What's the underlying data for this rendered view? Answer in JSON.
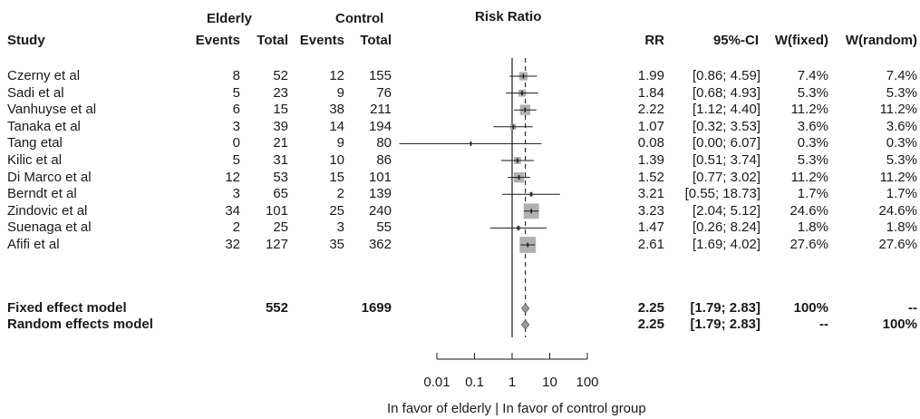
{
  "headers": {
    "study": "Study",
    "group1": "Elderly",
    "group2": "Control",
    "events": "Events",
    "total": "Total",
    "plot_title": "Risk Ratio",
    "rr": "RR",
    "ci": "95%-CI",
    "w_fixed": "W(fixed)",
    "w_random": "W(random)"
  },
  "footer": {
    "axis_caption": "In favor of elderly  |  In favor of control group"
  },
  "chart_data": {
    "type": "forest",
    "title": "Risk Ratio",
    "x_scale": "log",
    "x_ticks": [
      0.01,
      0.1,
      1,
      10,
      100
    ],
    "x_tick_labels": [
      "0.01",
      "0.1",
      "1",
      "10",
      "100"
    ],
    "xlim": [
      0.01,
      100
    ],
    "null_line": 1,
    "pooled_line": 2.25,
    "studies": [
      {
        "study": "Czerny et al",
        "e1": "8",
        "n1": "52",
        "e2": "12",
        "n2": "155",
        "rr": 1.99,
        "lo": 0.86,
        "hi": 4.59,
        "rr_label": "1.99",
        "ci_label": "[0.86;  4.59]",
        "wf": "7.4%",
        "wr": "7.4%",
        "weight": 7.4
      },
      {
        "study": "Sadi et al",
        "e1": "5",
        "n1": "23",
        "e2": "9",
        "n2": "76",
        "rr": 1.84,
        "lo": 0.68,
        "hi": 4.93,
        "rr_label": "1.84",
        "ci_label": "[0.68;  4.93]",
        "wf": "5.3%",
        "wr": "5.3%",
        "weight": 5.3
      },
      {
        "study": "Vanhuyse et al",
        "e1": "6",
        "n1": "15",
        "e2": "38",
        "n2": "211",
        "rr": 2.22,
        "lo": 1.12,
        "hi": 4.4,
        "rr_label": "2.22",
        "ci_label": "[1.12;  4.40]",
        "wf": "11.2%",
        "wr": "11.2%",
        "weight": 11.2
      },
      {
        "study": "Tanaka et al",
        "e1": "3",
        "n1": "39",
        "e2": "14",
        "n2": "194",
        "rr": 1.07,
        "lo": 0.32,
        "hi": 3.53,
        "rr_label": "1.07",
        "ci_label": "[0.32;  3.53]",
        "wf": "3.6%",
        "wr": "3.6%",
        "weight": 3.6
      },
      {
        "study": "Tang etal",
        "e1": "0",
        "n1": "21",
        "e2": "9",
        "n2": "80",
        "rr": 0.08,
        "lo": 0.001,
        "hi": 6.07,
        "rr_label": "0.08",
        "ci_label": "[0.00;  6.07]",
        "wf": "0.3%",
        "wr": "0.3%",
        "weight": 0.3
      },
      {
        "study": "Kilic et al",
        "e1": "5",
        "n1": "31",
        "e2": "10",
        "n2": "86",
        "rr": 1.39,
        "lo": 0.51,
        "hi": 3.74,
        "rr_label": "1.39",
        "ci_label": "[0.51;  3.74]",
        "wf": "5.3%",
        "wr": "5.3%",
        "weight": 5.3
      },
      {
        "study": "Di Marco et al",
        "e1": "12",
        "n1": "53",
        "e2": "15",
        "n2": "101",
        "rr": 1.52,
        "lo": 0.77,
        "hi": 3.02,
        "rr_label": "1.52",
        "ci_label": "[0.77;  3.02]",
        "wf": "11.2%",
        "wr": "11.2%",
        "weight": 11.2
      },
      {
        "study": "Berndt et al",
        "e1": "3",
        "n1": "65",
        "e2": "2",
        "n2": "139",
        "rr": 3.21,
        "lo": 0.55,
        "hi": 18.73,
        "rr_label": "3.21",
        "ci_label": "[0.55; 18.73]",
        "wf": "1.7%",
        "wr": "1.7%",
        "weight": 1.7
      },
      {
        "study": "Zindovic et al",
        "e1": "34",
        "n1": "101",
        "e2": "25",
        "n2": "240",
        "rr": 3.23,
        "lo": 2.04,
        "hi": 5.12,
        "rr_label": "3.23",
        "ci_label": "[2.04;  5.12]",
        "wf": "24.6%",
        "wr": "24.6%",
        "weight": 24.6
      },
      {
        "study": "Suenaga et al",
        "e1": "2",
        "n1": "25",
        "e2": "3",
        "n2": "55",
        "rr": 1.47,
        "lo": 0.26,
        "hi": 8.24,
        "rr_label": "1.47",
        "ci_label": "[0.26;  8.24]",
        "wf": "1.8%",
        "wr": "1.8%",
        "weight": 1.8
      },
      {
        "study": "Afifi et al",
        "e1": "32",
        "n1": "127",
        "e2": "35",
        "n2": "362",
        "rr": 2.61,
        "lo": 1.69,
        "hi": 4.02,
        "rr_label": "2.61",
        "ci_label": "[1.69;  4.02]",
        "wf": "27.6%",
        "wr": "27.6%",
        "weight": 27.6
      }
    ],
    "summaries": [
      {
        "label": "Fixed effect model",
        "n1": "552",
        "n2": "1699",
        "rr": 2.25,
        "lo": 1.79,
        "hi": 2.83,
        "rr_label": "2.25",
        "ci_label": "[1.79;  2.83]",
        "wf": "100%",
        "wr": "--"
      },
      {
        "label": "Random effects model",
        "n1": "",
        "n2": "",
        "rr": 2.25,
        "lo": 1.79,
        "hi": 2.83,
        "rr_label": "2.25",
        "ci_label": "[1.79;  2.83]",
        "wf": "--",
        "wr": "100%"
      }
    ],
    "colors": {
      "box": "#b0b0b0",
      "line": "#1a1a1a",
      "diamond": "#9a9a9a"
    }
  }
}
